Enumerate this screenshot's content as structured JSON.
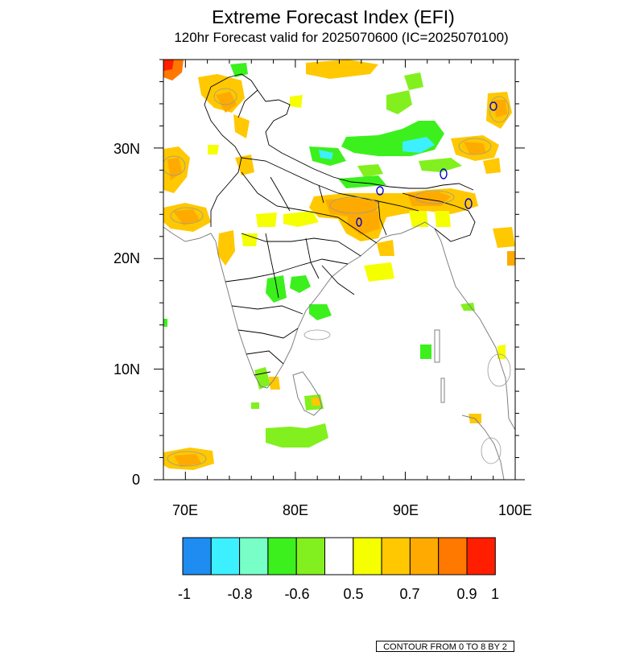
{
  "figure": {
    "title": "Extreme Forecast Index (EFI)",
    "subtitle": "120hr Forecast valid for 2025070600 (IC=2025070100)",
    "contour_note": "CONTOUR FROM 0 TO 8 BY 2"
  },
  "map": {
    "region": "South Asia (India and surroundings)",
    "lon_range": [
      68,
      100
    ],
    "lat_range": [
      0,
      38
    ],
    "x_ticks": [
      "70E",
      "80E",
      "90E",
      "100E"
    ],
    "y_ticks": [
      "0",
      "10N",
      "20N",
      "30N"
    ]
  },
  "colorbar": {
    "colors": [
      "#1e8cf0",
      "#3cf0ff",
      "#78ffc8",
      "#3cf01e",
      "#82f01e",
      "#ffffff",
      "#f5ff00",
      "#ffc800",
      "#ffaa00",
      "#ff7800",
      "#ff1e00"
    ],
    "labels": [
      "-1",
      "-0.8",
      "-0.6",
      "0.5",
      "0.7",
      "0.9",
      "1"
    ]
  },
  "colors": {
    "coastline": "#808080",
    "borders": "#000000",
    "contour_gray": "#999999",
    "contour_blue": "#0000cc"
  }
}
